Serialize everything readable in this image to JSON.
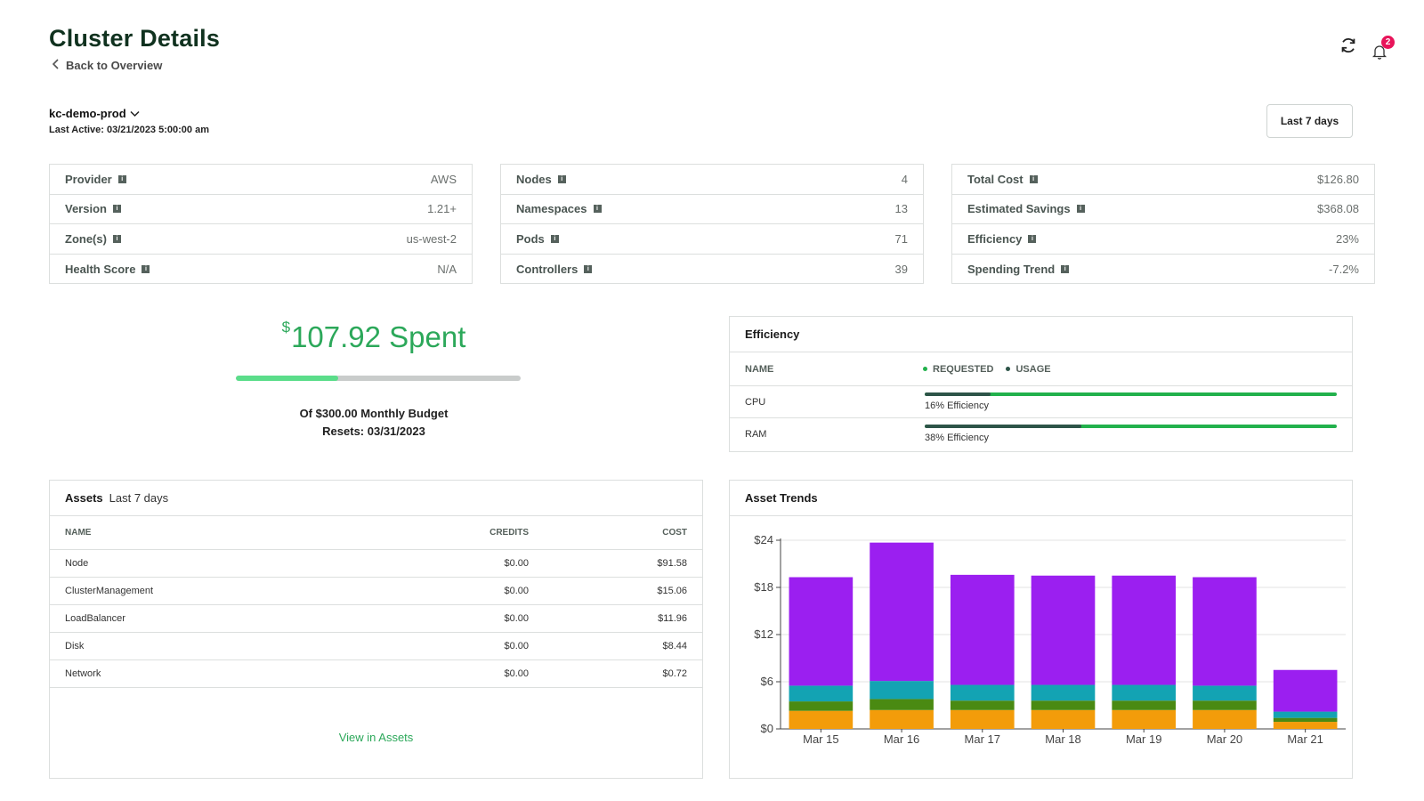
{
  "header": {
    "title": "Cluster Details",
    "back_label": "Back to Overview",
    "notification_count": "2"
  },
  "cluster": {
    "name": "kc-demo-prod",
    "last_active": "Last Active: 03/21/2023 5:00:00 am"
  },
  "range_button": "Last 7 days",
  "stat_cards": [
    {
      "rows": [
        {
          "label": "Provider",
          "value": "AWS"
        },
        {
          "label": "Version",
          "value": "1.21+"
        },
        {
          "label": "Zone(s)",
          "value": "us-west-2"
        },
        {
          "label": "Health Score",
          "value": "N/A"
        }
      ]
    },
    {
      "rows": [
        {
          "label": "Nodes",
          "value": "4"
        },
        {
          "label": "Namespaces",
          "value": "13"
        },
        {
          "label": "Pods",
          "value": "71"
        },
        {
          "label": "Controllers",
          "value": "39"
        }
      ]
    },
    {
      "rows": [
        {
          "label": "Total Cost",
          "value": "$126.80"
        },
        {
          "label": "Estimated Savings",
          "value": "$368.08"
        },
        {
          "label": "Efficiency",
          "value": "23%"
        },
        {
          "label": "Spending Trend",
          "value": "-7.2%"
        }
      ]
    }
  ],
  "budget": {
    "currency": "$",
    "amount_text": "107.92 Spent",
    "progress_fraction": 0.36,
    "line1": "Of $300.00 Monthly Budget",
    "line2": "Resets: 03/31/2023"
  },
  "efficiency": {
    "title": "Efficiency",
    "col_name": "NAME",
    "legend": [
      {
        "label": "REQUESTED",
        "color": "#22b14c"
      },
      {
        "label": "USAGE",
        "color": "#2d5448"
      }
    ],
    "rows": [
      {
        "name": "CPU",
        "text": "16% Efficiency",
        "usage_fraction": 0.16
      },
      {
        "name": "RAM",
        "text": "38% Efficiency",
        "usage_fraction": 0.38
      }
    ]
  },
  "assets": {
    "title": "Assets",
    "subtitle": "Last 7 days",
    "columns": [
      "NAME",
      "CREDITS",
      "COST"
    ],
    "rows": [
      {
        "name": "Node",
        "credits": "$0.00",
        "cost": "$91.58"
      },
      {
        "name": "ClusterManagement",
        "credits": "$0.00",
        "cost": "$15.06"
      },
      {
        "name": "LoadBalancer",
        "credits": "$0.00",
        "cost": "$11.96"
      },
      {
        "name": "Disk",
        "credits": "$0.00",
        "cost": "$8.44"
      },
      {
        "name": "Network",
        "credits": "$0.00",
        "cost": "$0.72"
      }
    ],
    "link_label": "View in Assets"
  },
  "asset_trends": {
    "title": "Asset Trends"
  },
  "colors": {
    "accent_green": "#2ca85a",
    "title_green": "#10321f",
    "badge_red": "#e8145a"
  },
  "chart_data": {
    "type": "bar",
    "stacked": true,
    "categories": [
      "Mar 15",
      "Mar 16",
      "Mar 17",
      "Mar 18",
      "Mar 19",
      "Mar 20",
      "Mar 21"
    ],
    "series": [
      {
        "color": "#f39c0a",
        "values": [
          2.3,
          2.4,
          2.4,
          2.4,
          2.4,
          2.4,
          0.9
        ]
      },
      {
        "color": "#4a8a12",
        "values": [
          1.2,
          1.4,
          1.2,
          1.2,
          1.2,
          1.2,
          0.5
        ]
      },
      {
        "color": "#13a3b3",
        "values": [
          2.0,
          2.3,
          2.0,
          2.0,
          2.0,
          1.9,
          0.8
        ]
      },
      {
        "color": "#9b1ff0",
        "values": [
          13.8,
          17.6,
          14.0,
          13.9,
          13.9,
          13.8,
          5.3
        ]
      }
    ],
    "ylim": [
      0,
      24
    ],
    "yticks": [
      "$0",
      "$6",
      "$12",
      "$18",
      "$24"
    ],
    "ytick_values": [
      0,
      6,
      12,
      18,
      24
    ],
    "grid": true,
    "legend": "none"
  }
}
